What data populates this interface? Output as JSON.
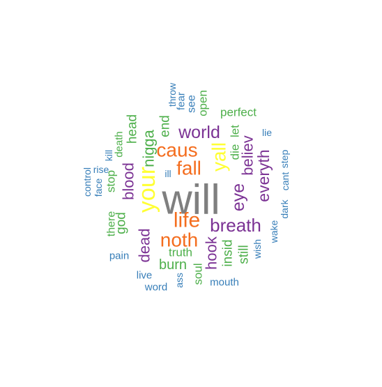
{
  "palette": {
    "gray": "#7f7f7f",
    "yellow": "#ffff33",
    "orange": "#f46d1e",
    "purple": "#7b3294",
    "green": "#4daf4a",
    "blue": "#377eb8"
  },
  "words": [
    {
      "text": "will",
      "color": "gray",
      "weight": 10
    },
    {
      "text": "your",
      "color": "yellow",
      "weight": 8
    },
    {
      "text": "yall",
      "color": "yellow",
      "weight": 7
    },
    {
      "text": "fall",
      "color": "orange",
      "weight": 6
    },
    {
      "text": "caus",
      "color": "orange",
      "weight": 6
    },
    {
      "text": "life",
      "color": "orange",
      "weight": 6
    },
    {
      "text": "noth",
      "color": "orange",
      "weight": 6
    },
    {
      "text": "breath",
      "color": "purple",
      "weight": 5
    },
    {
      "text": "eye",
      "color": "purple",
      "weight": 5
    },
    {
      "text": "everyth",
      "color": "purple",
      "weight": 5
    },
    {
      "text": "world",
      "color": "purple",
      "weight": 5
    },
    {
      "text": "believ",
      "color": "purple",
      "weight": 4
    },
    {
      "text": "blood",
      "color": "purple",
      "weight": 4
    },
    {
      "text": "dead",
      "color": "purple",
      "weight": 4
    },
    {
      "text": "hook",
      "color": "purple",
      "weight": 4
    },
    {
      "text": "nigga",
      "color": "green",
      "weight": 4
    },
    {
      "text": "burn",
      "color": "green",
      "weight": 3
    },
    {
      "text": "insid",
      "color": "green",
      "weight": 3
    },
    {
      "text": "still",
      "color": "green",
      "weight": 3
    },
    {
      "text": "god",
      "color": "green",
      "weight": 3
    },
    {
      "text": "head",
      "color": "green",
      "weight": 3
    },
    {
      "text": "end",
      "color": "green",
      "weight": 3
    },
    {
      "text": "die",
      "color": "green",
      "weight": 3
    },
    {
      "text": "let",
      "color": "green",
      "weight": 3
    },
    {
      "text": "truth",
      "color": "green",
      "weight": 3
    },
    {
      "text": "soul",
      "color": "green",
      "weight": 2
    },
    {
      "text": "stop",
      "color": "green",
      "weight": 2
    },
    {
      "text": "death",
      "color": "green",
      "weight": 2
    },
    {
      "text": "open",
      "color": "green",
      "weight": 2
    },
    {
      "text": "perfect",
      "color": "green",
      "weight": 2
    },
    {
      "text": "there",
      "color": "green",
      "weight": 2
    },
    {
      "text": "see",
      "color": "blue",
      "weight": 2
    },
    {
      "text": "fear",
      "color": "blue",
      "weight": 2
    },
    {
      "text": "throw",
      "color": "blue",
      "weight": 1
    },
    {
      "text": "lie",
      "color": "blue",
      "weight": 1
    },
    {
      "text": "step",
      "color": "blue",
      "weight": 1
    },
    {
      "text": "cant",
      "color": "blue",
      "weight": 1
    },
    {
      "text": "dark",
      "color": "blue",
      "weight": 1
    },
    {
      "text": "wake",
      "color": "blue",
      "weight": 1
    },
    {
      "text": "wish",
      "color": "blue",
      "weight": 1
    },
    {
      "text": "mouth",
      "color": "blue",
      "weight": 1
    },
    {
      "text": "ass",
      "color": "blue",
      "weight": 1
    },
    {
      "text": "word",
      "color": "blue",
      "weight": 1
    },
    {
      "text": "live",
      "color": "blue",
      "weight": 1
    },
    {
      "text": "pain",
      "color": "blue",
      "weight": 1
    },
    {
      "text": "control",
      "color": "blue",
      "weight": 1
    },
    {
      "text": "rise",
      "color": "blue",
      "weight": 1
    },
    {
      "text": "face",
      "color": "blue",
      "weight": 1
    },
    {
      "text": "kill",
      "color": "blue",
      "weight": 1
    },
    {
      "text": "ill",
      "color": "blue",
      "weight": 1
    }
  ]
}
